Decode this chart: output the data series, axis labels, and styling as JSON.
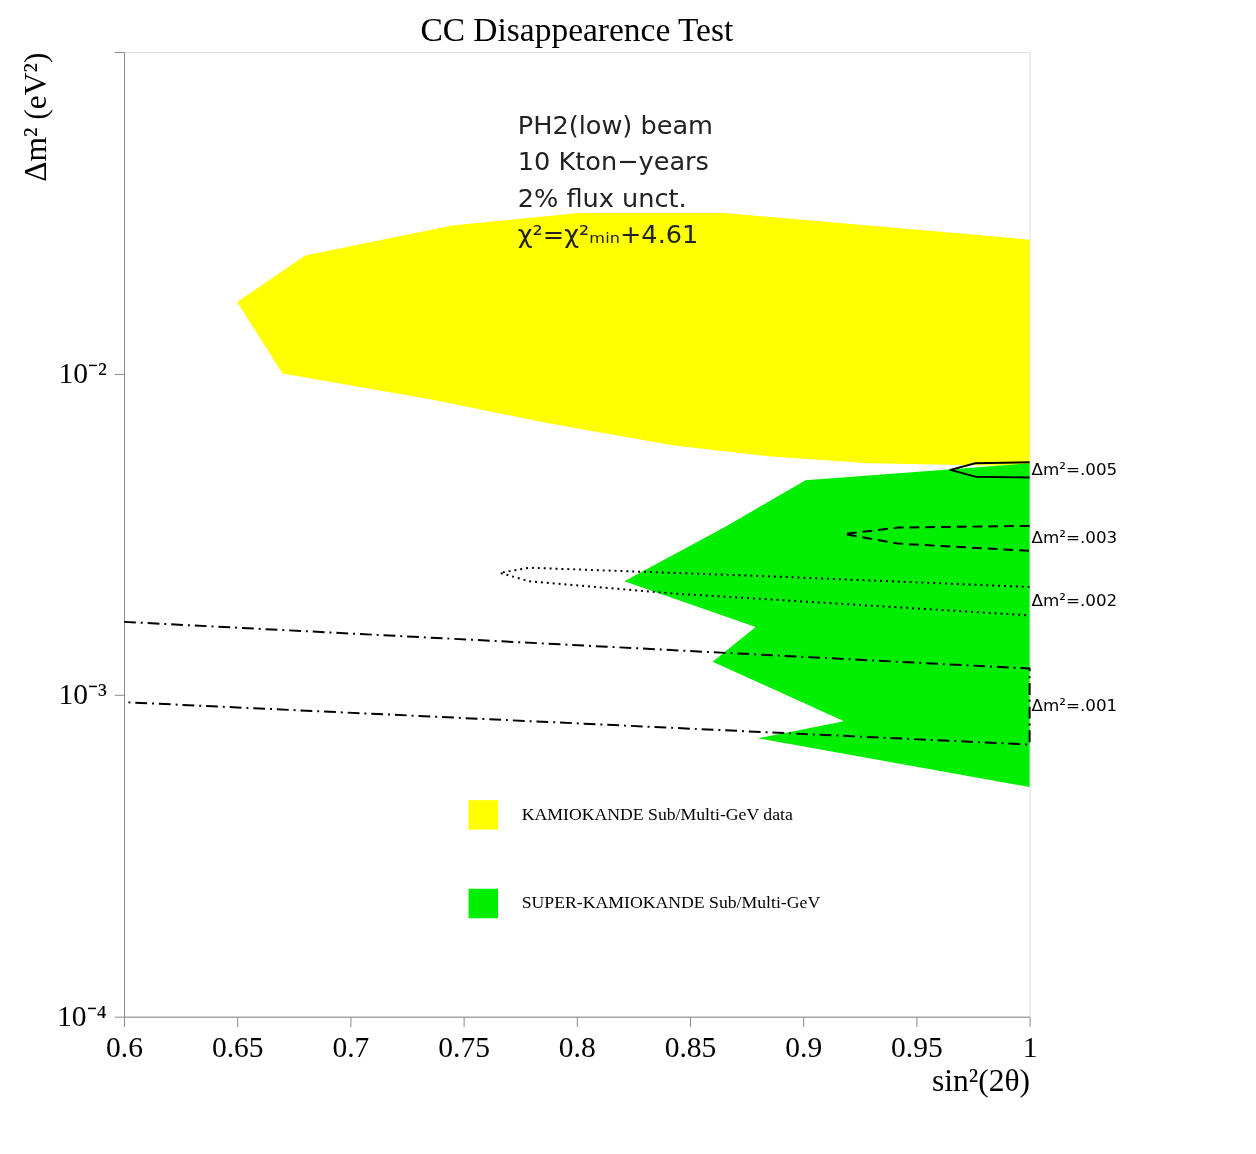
{
  "chart_data": {
    "type": "area",
    "title": "CC Disappearence Test",
    "xlabel": "sin²(2θ)",
    "ylabel": "Δm² (eV²)",
    "log": "y",
    "xlim": [
      0.6,
      1
    ],
    "xticks": [
      0.6,
      0.65,
      0.7,
      0.75,
      0.8,
      0.85,
      0.9,
      0.95,
      1
    ],
    "ylim": [
      0.0001,
      0.1
    ],
    "yticks": [
      {
        "value": 0.0001,
        "label": "10⁻⁴"
      },
      {
        "value": 0.001,
        "label": "10⁻³"
      },
      {
        "value": 0.01,
        "label": "10⁻²"
      },
      {
        "value": 0.1,
        "label": null
      }
    ],
    "grid": false,
    "legend": "bottom",
    "annotations": [
      "PH2(low) beam",
      "10 Kton−years",
      "2% flux unct.",
      "χ²=χ²ₘᵢₙ+4.61"
    ],
    "series": [
      {
        "name": "KAMIOKANDE Sub/Multi-GeV data",
        "color": "#ffff00",
        "x": [
          0.65,
          0.68,
          0.745,
          0.801,
          0.865,
          1.0,
          1.0,
          0.929,
          0.886,
          0.843,
          0.788,
          0.737,
          0.67
        ],
        "values": [
          0.0167,
          0.0233,
          0.0289,
          0.0316,
          0.0316,
          0.0261,
          0.00515,
          0.00526,
          0.00552,
          0.00598,
          0.00699,
          0.00828,
          0.01
        ]
      },
      {
        "name": "SUPER-KAMIOKANDE Sub/Multi-GeV",
        "color": "#00ee00",
        "x": [
          0.901,
          1.0,
          1.0,
          0.88,
          0.918,
          0.86,
          0.879,
          0.821,
          0.865
        ],
        "values": [
          0.00466,
          0.00526,
          0.000518,
          0.000734,
          0.00083,
          0.00127,
          0.00163,
          0.00226,
          0.00332
        ]
      },
      {
        "type": "line",
        "name": "Δm²=.005",
        "color": "#000000",
        "line_style": "solid",
        "x": [
          1.0,
          0.976,
          0.965,
          0.976,
          1.0
        ],
        "values": [
          0.0053,
          0.00526,
          0.00502,
          0.00478,
          0.00475
        ]
      },
      {
        "type": "line",
        "name": "Δm²=.003",
        "color": "#000000",
        "line_style": "dashed",
        "x": [
          1.0,
          0.942,
          0.918,
          0.942,
          1.0
        ],
        "values": [
          0.00336,
          0.00332,
          0.00317,
          0.00296,
          0.00281
        ]
      },
      {
        "type": "line",
        "name": "Δm²=.002",
        "color": "#000000",
        "line_style": "dotted",
        "x": [
          1.0,
          0.886,
          0.779,
          0.766,
          0.779,
          0.843,
          1.0
        ],
        "values": [
          0.00217,
          0.00234,
          0.00249,
          0.0024,
          0.00226,
          0.00207,
          0.00177
        ]
      },
      {
        "type": "line",
        "name": "Δm²=.001",
        "color": "#000000",
        "line_style": "dashdot",
        "x": [
          0.6,
          1.0,
          1.0,
          0.6
        ],
        "values": [
          0.00169,
          0.00121,
          0.000702,
          0.000951
        ]
      }
    ]
  }
}
